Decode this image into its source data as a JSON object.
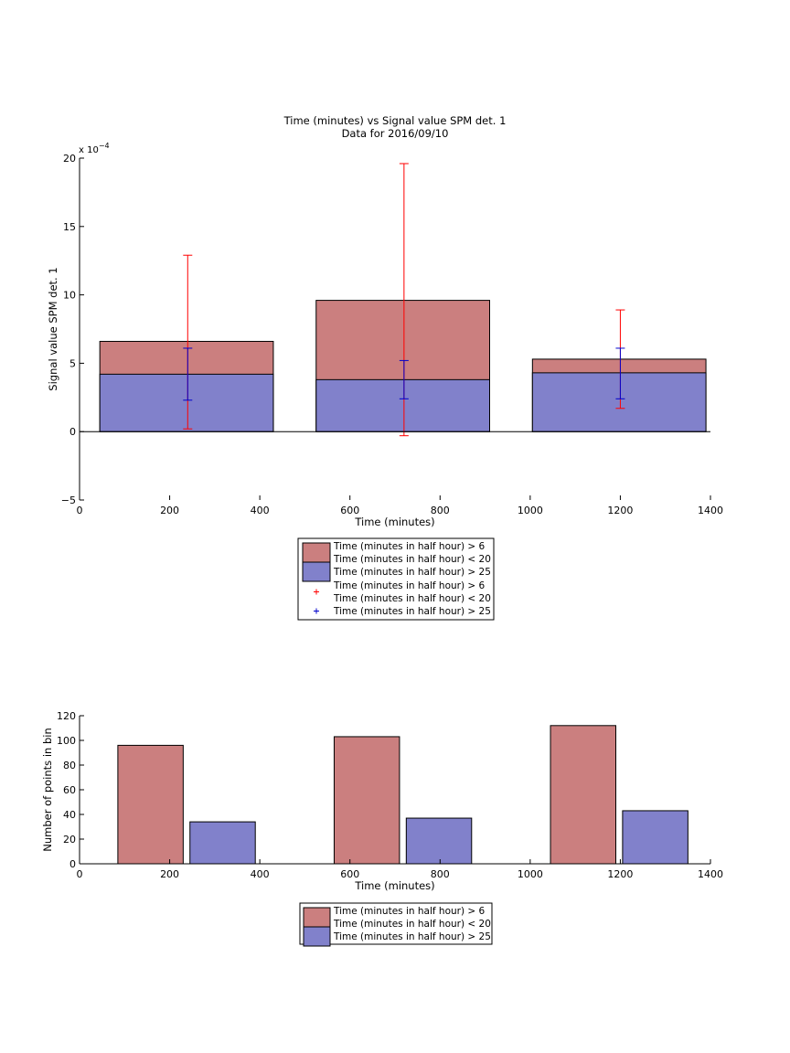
{
  "figure": {
    "title_line1": "Time (minutes) vs Signal value SPM det. 1",
    "title_line2": "Data for 2016/09/10"
  },
  "colors": {
    "red_fill": "#cb7f7f",
    "blue_fill": "#8181cb",
    "red_err": "#ff0000",
    "blue_err": "#0000cc",
    "axis": "#000000"
  },
  "chart_data": [
    {
      "type": "bar",
      "title": "Time (minutes) vs Signal value SPM det. 1",
      "subtitle": "Data for 2016/09/10",
      "xlabel": "Time (minutes)",
      "ylabel": "Signal value SPM det. 1",
      "y_exponent_label": "x 10",
      "y_exponent_power": "−4",
      "xlim": [
        0,
        1400
      ],
      "ylim": [
        -5,
        20
      ],
      "y_scale_factor": 0.0001,
      "xticks": [
        0,
        200,
        400,
        600,
        800,
        1000,
        1200,
        1400
      ],
      "yticks": [
        -5,
        0,
        5,
        10,
        15,
        20
      ],
      "grid": false,
      "bars": [
        {
          "x_start": 45,
          "x_end": 430,
          "series1": 6.6,
          "series2": 4.2
        },
        {
          "x_start": 525,
          "x_end": 910,
          "series1": 9.6,
          "series2": 3.8
        },
        {
          "x_start": 1005,
          "x_end": 1390,
          "series1": 5.3,
          "series2": 4.3
        }
      ],
      "errorbars_series1": [
        {
          "x": 240,
          "low": 0.2,
          "high": 12.9
        },
        {
          "x": 720,
          "low": -0.3,
          "high": 19.6
        },
        {
          "x": 1200,
          "low": 1.7,
          "high": 8.9
        }
      ],
      "errorbars_series2": [
        {
          "x": 240,
          "low": 2.3,
          "high": 6.1
        },
        {
          "x": 720,
          "low": 2.4,
          "high": 5.2
        },
        {
          "x": 1200,
          "low": 2.4,
          "high": 6.1
        }
      ],
      "legend": [
        "Time (minutes in half hour) > 6",
        "Time (minutes in half hour) < 20",
        "Time (minutes in half hour) > 25",
        "Time (minutes in half hour) > 6",
        "Time (minutes in half hour) < 20",
        "Time (minutes in half hour) > 25"
      ],
      "legend_placement": "below"
    },
    {
      "type": "bar",
      "xlabel": "Time (minutes)",
      "ylabel": "Number of points in bin",
      "xlim": [
        0,
        1400
      ],
      "ylim": [
        0,
        120
      ],
      "xticks": [
        0,
        200,
        400,
        600,
        800,
        1000,
        1200,
        1400
      ],
      "yticks": [
        0,
        20,
        40,
        60,
        80,
        100,
        120
      ],
      "grid": false,
      "series": [
        {
          "x_start": [
            85,
            565,
            1045
          ],
          "x_end": [
            230,
            710,
            1190
          ],
          "values": [
            96,
            103,
            112
          ]
        },
        {
          "x_start": [
            245,
            725,
            1205
          ],
          "x_end": [
            390,
            870,
            1350
          ],
          "values": [
            34,
            37,
            43
          ]
        }
      ],
      "legend": [
        "Time (minutes in half hour) > 6",
        "Time (minutes in half hour) < 20",
        "Time (minutes in half hour) > 25"
      ],
      "legend_placement": "below"
    }
  ]
}
